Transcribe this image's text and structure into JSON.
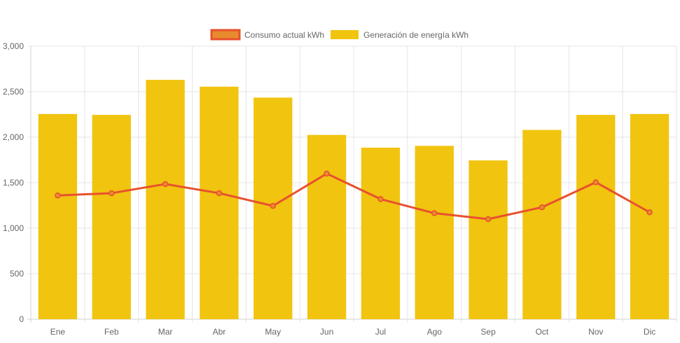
{
  "chart_data": {
    "type": "bar",
    "categories": [
      "Ene",
      "Feb",
      "Mar",
      "Abr",
      "May",
      "Jun",
      "Jul",
      "Ago",
      "Sep",
      "Oct",
      "Nov",
      "Dic"
    ],
    "series": [
      {
        "name": "Consumo actual kWh",
        "type": "line",
        "color": "#e8502e",
        "fill": "#e88a2e",
        "values": [
          1360,
          1385,
          1485,
          1385,
          1245,
          1600,
          1320,
          1165,
          1100,
          1230,
          1505,
          1175
        ]
      },
      {
        "name": "Generación de energía kWh",
        "type": "bar",
        "color": "#f1c40f",
        "values": [
          2255,
          2245,
          2630,
          2555,
          2435,
          2025,
          1885,
          1905,
          1745,
          2080,
          2245,
          2255
        ]
      }
    ],
    "yticks": [
      "0",
      "500",
      "1,000",
      "1,500",
      "2,000",
      "2,500",
      "3,000"
    ],
    "ylim": [
      0,
      3000
    ],
    "grid": true,
    "legend": "top-center",
    "title": "",
    "xlabel": "",
    "ylabel": ""
  }
}
